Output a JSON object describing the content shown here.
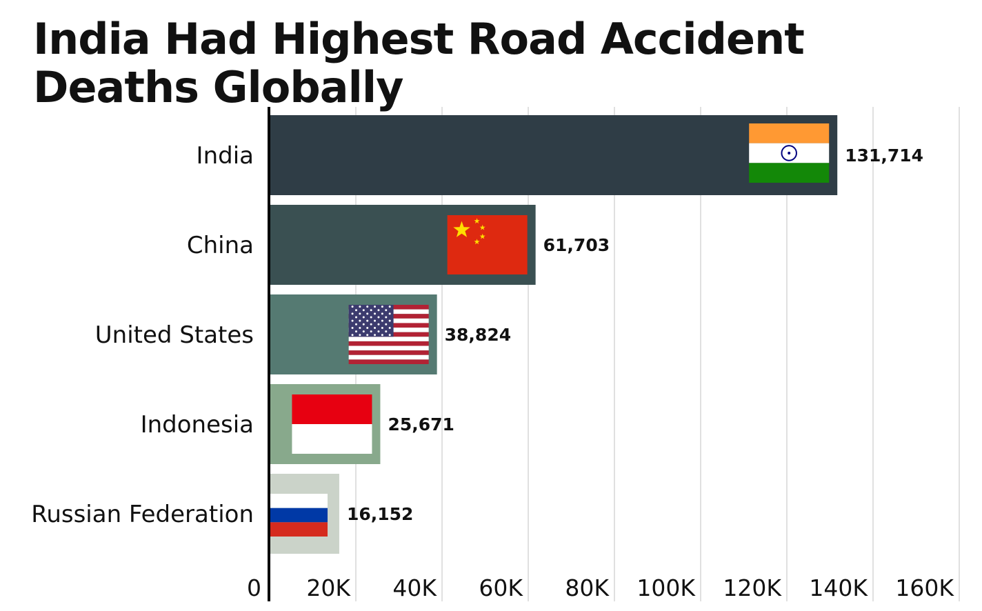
{
  "chart_data": {
    "type": "bar",
    "orientation": "horizontal",
    "title": "India Had Highest Road Accident Deaths Globally",
    "categories": [
      "India",
      "China",
      "United States",
      "Indonesia",
      "Russian Federation"
    ],
    "values": [
      131714,
      61703,
      38824,
      25671,
      16152
    ],
    "value_labels": [
      "131,714",
      "61,703",
      "38,824",
      "25,671",
      "16,152"
    ],
    "bar_colors": [
      "#2f3d46",
      "#3a5052",
      "#557a72",
      "#88a98c",
      "#cbd3c9"
    ],
    "flags": [
      "india-flag",
      "china-flag",
      "usa-flag",
      "indonesia-flag",
      "russia-flag"
    ],
    "xlim": [
      0,
      160000
    ],
    "xticks": [
      0,
      20000,
      40000,
      60000,
      80000,
      100000,
      120000,
      140000,
      160000
    ],
    "xtick_labels": [
      "0",
      "20K",
      "40K",
      "60K",
      "80K",
      "100K",
      "120K",
      "140K",
      "160K"
    ],
    "grid": true,
    "xlabel": "",
    "ylabel": ""
  }
}
